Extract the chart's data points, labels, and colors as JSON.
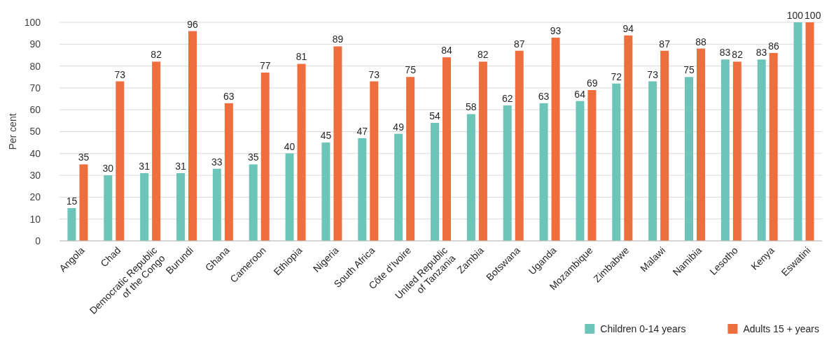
{
  "chart_data": {
    "type": "bar",
    "ylabel": "Per cent",
    "categories": [
      "Angola",
      "Chad",
      "Democratic Republic\nof the Congo",
      "Burundi",
      "Ghana",
      "Cameroon",
      "Ethiopia",
      "Nigeria",
      "South Africa",
      "Côte d’Ivoire",
      "United Republic\nof Tanzania",
      "Zambia",
      "Botswana",
      "Uganda",
      "Mozambique",
      "Zimbabwe",
      "Malawi",
      "Namibia",
      "Lesotho",
      "Kenya",
      "Eswatini"
    ],
    "series": [
      {
        "name": "Children 0-14 years",
        "color": "#6dc5b9",
        "values": [
          15,
          30,
          31,
          31,
          33,
          35,
          40,
          45,
          47,
          49,
          54,
          58,
          62,
          63,
          64,
          72,
          73,
          75,
          83,
          83,
          100
        ]
      },
      {
        "name": "Adults 15 + years",
        "color": "#ee6e3e",
        "values": [
          35,
          73,
          82,
          96,
          63,
          77,
          81,
          89,
          73,
          75,
          84,
          82,
          87,
          93,
          69,
          94,
          87,
          88,
          82,
          86,
          100
        ]
      }
    ],
    "ylim": [
      0,
      100
    ],
    "yticks": [
      0,
      10,
      20,
      30,
      40,
      50,
      60,
      70,
      80,
      90,
      100
    ],
    "grid": "y",
    "legend": "bottom right",
    "data_labels": true
  }
}
